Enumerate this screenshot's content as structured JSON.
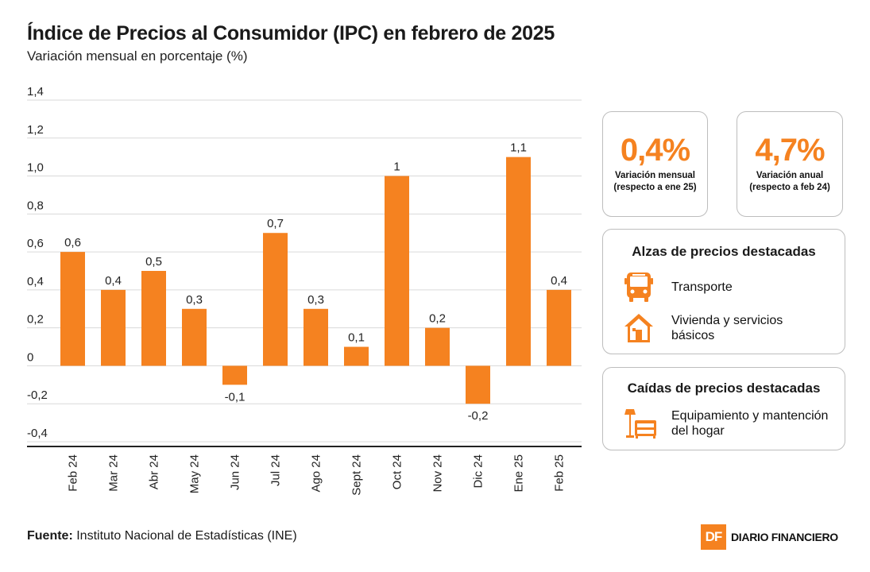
{
  "title": "Índice de Precios al Consumidor (IPC) en febrero de 2025",
  "subtitle": "Variación mensual en porcentaje (%)",
  "chart_data": {
    "type": "bar",
    "categories": [
      "Feb 24",
      "Mar 24",
      "Abr 24",
      "May 24",
      "Jun 24",
      "Jul 24",
      "Ago 24",
      "Sept 24",
      "Oct 24",
      "Nov 24",
      "Dic 24",
      "Ene 25",
      "Feb 25"
    ],
    "values": [
      0.6,
      0.4,
      0.5,
      0.3,
      -0.1,
      0.7,
      0.3,
      0.1,
      1.0,
      0.2,
      -0.2,
      1.1,
      0.4
    ],
    "value_labels": [
      "0,6",
      "0,4",
      "0,5",
      "0,3",
      "-0,1",
      "0,7",
      "0,3",
      "0,1",
      "1",
      "0,2",
      "-0,2",
      "1,1",
      "0,4"
    ],
    "yticks": [
      1.4,
      1.2,
      1.0,
      0.8,
      0.6,
      0.4,
      0.2,
      0,
      -0.2,
      -0.4
    ],
    "ytick_labels": [
      "1,4",
      "1,2",
      "1,0",
      "0,8",
      "0,6",
      "0,4",
      "0,2",
      "0",
      "-0,2",
      "-0,4"
    ],
    "ylim": [
      -0.4,
      1.4
    ],
    "grid": true,
    "bar_color": "#f58220"
  },
  "stats": [
    {
      "value": "0,4%",
      "label_line1": "Variación mensual",
      "label_line2": "(respecto a ene 25)"
    },
    {
      "value": "4,7%",
      "label_line1": "Variación anual",
      "label_line2": "(respecto a feb 24)"
    }
  ],
  "rises": {
    "title": "Alzas de precios destacadas",
    "items": [
      {
        "icon": "bus-icon",
        "label": "Transporte"
      },
      {
        "icon": "house-icon",
        "label": "Vivienda y servicios básicos"
      }
    ]
  },
  "falls": {
    "title": "Caídas de precios destacadas",
    "items": [
      {
        "icon": "furniture-icon",
        "label": "Equipamiento y mantención del hogar"
      }
    ]
  },
  "source": {
    "label": "Fuente:",
    "text": " Instituto Nacional de Estadísticas (INE)"
  },
  "brand": {
    "logo": "DF",
    "name": "DIARIO FINANCIERO"
  },
  "accent_color": "#f58220"
}
